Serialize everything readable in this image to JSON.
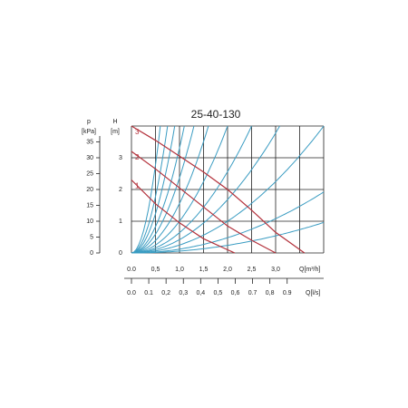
{
  "chart_data": {
    "type": "line",
    "title": "25-40-130",
    "y_label": "H",
    "y_unit": "[m]",
    "y2_label": "p",
    "y2_unit": "[kPa]",
    "x_label": "Q[m³/h]",
    "x2_label": "Q[l/s]",
    "xlim": [
      0,
      4
    ],
    "ylim": [
      0,
      4
    ],
    "y2lim": [
      0,
      40
    ],
    "x2lim": [
      0,
      1.1111
    ],
    "xticks": [
      {
        "value": 0,
        "label": "0.0"
      },
      {
        "value": 0.5,
        "label": "0,5"
      },
      {
        "value": 1,
        "label": "1,0"
      },
      {
        "value": 1.5,
        "label": "1,5"
      },
      {
        "value": 2,
        "label": "2,0"
      },
      {
        "value": 2.5,
        "label": "2,5"
      },
      {
        "value": 3,
        "label": "3,0"
      }
    ],
    "xgrid": [
      0,
      0.5,
      1,
      1.5,
      2,
      2.5,
      3,
      3.5,
      4
    ],
    "yticks": [
      0,
      1,
      2,
      3
    ],
    "ygrid": [
      0,
      1,
      2,
      3,
      4
    ],
    "y2ticks": [
      0,
      5,
      10,
      15,
      20,
      25,
      30,
      35
    ],
    "x2ticks": [
      {
        "value": 0,
        "label": "0.0"
      },
      {
        "value": 0.1,
        "label": "0.1"
      },
      {
        "value": 0.2,
        "label": "0,2"
      },
      {
        "value": 0.3,
        "label": "0,3"
      },
      {
        "value": 0.4,
        "label": "0,4"
      },
      {
        "value": 0.5,
        "label": "0,5"
      },
      {
        "value": 0.6,
        "label": "0,6"
      },
      {
        "value": 0.7,
        "label": "0.7"
      },
      {
        "value": 0.8,
        "label": "0,8"
      },
      {
        "value": 0.9,
        "label": "0.9"
      }
    ],
    "grid": true,
    "series": [
      {
        "name": "1",
        "color": "#b3303a",
        "x": [
          0,
          0.5,
          1,
          1.5,
          2,
          2.15
        ],
        "values": [
          2.3,
          1.55,
          0.95,
          0.45,
          0.1,
          0
        ]
      },
      {
        "name": "2",
        "color": "#b3303a",
        "x": [
          0,
          0.5,
          1,
          1.5,
          2,
          2.5,
          3
        ],
        "values": [
          3.2,
          2.65,
          2.05,
          1.45,
          0.85,
          0.4,
          0
        ]
      },
      {
        "name": "3",
        "color": "#b3303a",
        "x": [
          0,
          0.5,
          1,
          1.5,
          2,
          2.5,
          3,
          3.6
        ],
        "values": [
          4.0,
          3.55,
          3.05,
          2.55,
          2.0,
          1.35,
          0.65,
          0
        ]
      }
    ],
    "system_curves": {
      "color": "#3a9cc2",
      "k": [
        11.1,
        7.1,
        4.94,
        3.31,
        2.37,
        1.56,
        1.0,
        0.64,
        0.42,
        0.25,
        0.12,
        0.06
      ]
    }
  }
}
